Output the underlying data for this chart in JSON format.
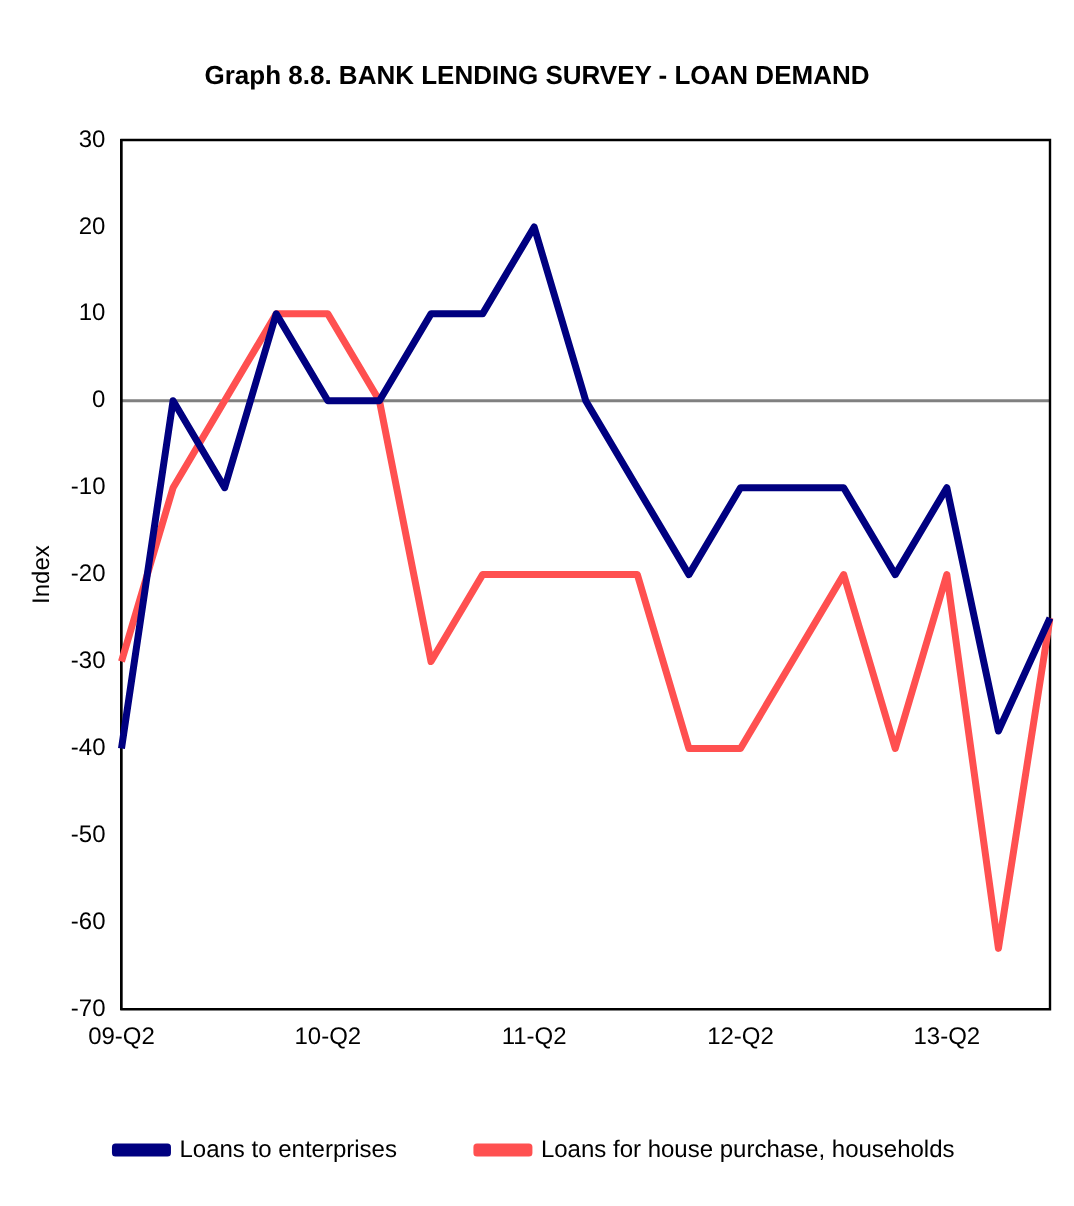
{
  "chart_data": {
    "type": "line",
    "title": "Graph 8.8. BANK LENDING SURVEY - LOAN DEMAND",
    "ylabel": "Index",
    "categories": [
      "09-Q2",
      null,
      null,
      null,
      "10-Q2",
      null,
      null,
      null,
      "11-Q2",
      null,
      null,
      null,
      "12-Q2",
      null,
      null,
      null,
      "13-Q2",
      null,
      null
    ],
    "series": [
      {
        "name": "Loans to enterprises",
        "color": "#000080",
        "values": [
          -40,
          0,
          -10,
          10,
          0,
          0,
          10,
          10,
          20,
          0,
          -10,
          -20,
          -10,
          -10,
          -10,
          -20,
          -10,
          -38,
          -25
        ]
      },
      {
        "name": "Loans for house purchase, households",
        "color": "#ff5050",
        "values": [
          -30,
          -10,
          0,
          10,
          10,
          0,
          -30,
          -20,
          -20,
          -20,
          -20,
          -40,
          -40,
          -30,
          -20,
          -40,
          -20,
          -63,
          -25
        ]
      }
    ],
    "ylim": [
      -70,
      30
    ],
    "yticks": [
      -70,
      -60,
      -50,
      -40,
      -30,
      -20,
      -10,
      0,
      10,
      20,
      30
    ],
    "ref_lines": [
      {
        "axis": "y",
        "value": 0,
        "color": "#808080"
      }
    ],
    "grid": false,
    "legend": "bottom",
    "marker": "none",
    "line_style": "solid"
  }
}
